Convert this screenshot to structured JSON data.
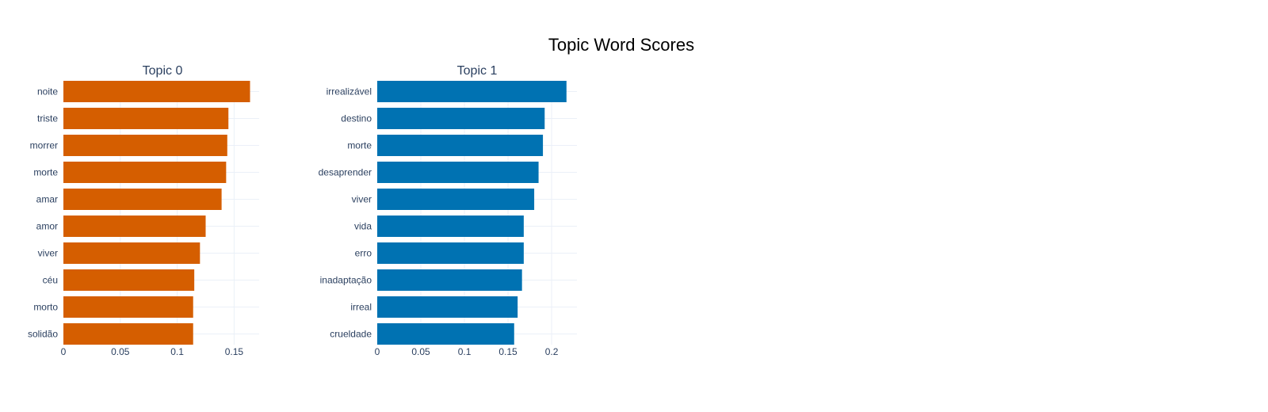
{
  "chart_data": [
    {
      "type": "bar",
      "orientation": "horizontal",
      "title": "Topic 0",
      "color": "#D55E00",
      "categories": [
        "noite",
        "triste",
        "morrer",
        "morte",
        "amar",
        "amor",
        "viver",
        "céu",
        "morto",
        "solidão"
      ],
      "values": [
        0.164,
        0.145,
        0.144,
        0.143,
        0.139,
        0.125,
        0.12,
        0.115,
        0.114,
        0.114
      ],
      "xlim": [
        0,
        0.172
      ],
      "xticks": [
        0,
        0.05,
        0.1,
        0.15
      ],
      "xtick_labels": [
        "0",
        "0.05",
        "0.1",
        "0.15"
      ],
      "grid": true
    },
    {
      "type": "bar",
      "orientation": "horizontal",
      "title": "Topic 1",
      "color": "#0072B2",
      "categories": [
        "irrealizável",
        "destino",
        "morte",
        "desaprender",
        "viver",
        "vida",
        "erro",
        "inadaptação",
        "irreal",
        "crueldade"
      ],
      "values": [
        0.217,
        0.192,
        0.19,
        0.185,
        0.18,
        0.168,
        0.168,
        0.166,
        0.161,
        0.157
      ],
      "xlim": [
        0,
        0.229
      ],
      "xticks": [
        0,
        0.05,
        0.1,
        0.15,
        0.2
      ],
      "xtick_labels": [
        "0",
        "0.05",
        "0.1",
        "0.15",
        "0.2"
      ],
      "grid": true
    }
  ],
  "figure": {
    "title": "Topic Word Scores"
  }
}
